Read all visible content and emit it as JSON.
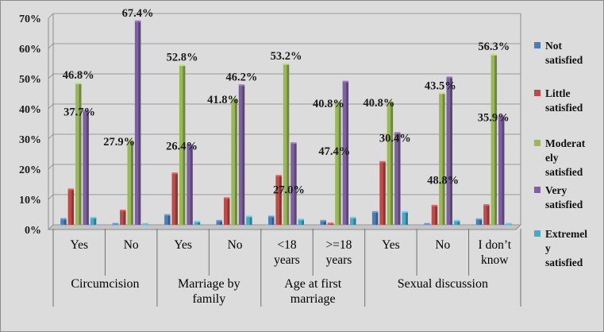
{
  "chart_data": {
    "type": "bar",
    "title": "",
    "xlabel": "",
    "ylabel": "",
    "ylim": [
      0,
      70
    ],
    "yticks": [
      0,
      10,
      20,
      30,
      40,
      50,
      60,
      70
    ],
    "ytick_labels": [
      "0%",
      "10%",
      "20%",
      "30%",
      "40%",
      "50%",
      "60%",
      "70%"
    ],
    "grid": true,
    "legend_position": "right",
    "groups": [
      {
        "name": "Circumcision",
        "categories": [
          "Yes",
          "No"
        ]
      },
      {
        "name": "Marriage by family",
        "categories": [
          "Yes",
          "No"
        ]
      },
      {
        "name": "Age at first marriage",
        "categories": [
          "<18 years",
          ">=18 years"
        ]
      },
      {
        "name": "Sexual discussion",
        "categories": [
          "Yes",
          "No",
          "I don’t know"
        ]
      }
    ],
    "categories": [
      "Yes",
      "No",
      "Yes",
      "No",
      "<18 years",
      ">=18 years",
      "Yes",
      "No",
      "I don’t know"
    ],
    "series": [
      {
        "name": "Not satisfied",
        "color": "#4a7ebb",
        "values": [
          1.9,
          0.3,
          3.2,
          1.3,
          2.7,
          1.3,
          4.2,
          0.2,
          1.8
        ]
      },
      {
        "name": "Little satisfied",
        "color": "#be4b48",
        "values": [
          11.7,
          4.7,
          17.0,
          8.8,
          16.2,
          0.4,
          20.8,
          6.3,
          6.5
        ]
      },
      {
        "name": "Moderately satisfied",
        "color": "#98b954",
        "values": [
          46.8,
          27.9,
          52.8,
          41.8,
          53.2,
          40.8,
          40.8,
          43.5,
          56.3
        ]
      },
      {
        "name": "Very satisfied",
        "color": "#7d60a0",
        "values": [
          37.7,
          67.4,
          26.4,
          46.2,
          27.0,
          47.4,
          30.4,
          48.8,
          35.9
        ]
      },
      {
        "name": "Extremely satisfied",
        "color": "#46aac5",
        "values": [
          2.3,
          0.1,
          1.0,
          2.7,
          1.7,
          2.3,
          4.2,
          1.3,
          0.3
        ]
      }
    ],
    "data_labels": [
      {
        "text": "46.8%",
        "category_index": 0,
        "series_index": 2
      },
      {
        "text": "37.7%",
        "category_index": 0,
        "series_index": 3
      },
      {
        "text": "67.4%",
        "category_index": 1,
        "series_index": 3
      },
      {
        "text": "27.9%",
        "category_index": 1,
        "series_index": 2
      },
      {
        "text": "52.8%",
        "category_index": 2,
        "series_index": 2
      },
      {
        "text": "26.4%",
        "category_index": 2,
        "series_index": 3
      },
      {
        "text": "46.2%",
        "category_index": 3,
        "series_index": 3
      },
      {
        "text": "41.8%",
        "category_index": 3,
        "series_index": 2
      },
      {
        "text": "53.2%",
        "category_index": 4,
        "series_index": 2
      },
      {
        "text": "27.0%",
        "category_index": 4,
        "series_index": 3
      },
      {
        "text": "40.8%",
        "category_index": 5,
        "series_index": 2
      },
      {
        "text": "47.4%",
        "category_index": 5,
        "series_index": 3
      },
      {
        "text": "40.8%",
        "category_index": 6,
        "series_index": 2
      },
      {
        "text": "30.4%",
        "category_index": 6,
        "series_index": 3
      },
      {
        "text": "43.5%",
        "category_index": 7,
        "series_index": 2
      },
      {
        "text": "48.8%",
        "category_index": 7,
        "series_index": 3
      },
      {
        "text": "56.3%",
        "category_index": 8,
        "series_index": 2
      },
      {
        "text": "35.9%",
        "category_index": 8,
        "series_index": 3
      }
    ]
  },
  "legend": {
    "items": [
      {
        "lines": [
          "Not",
          "satisfied"
        ],
        "color": "#4a7ebb"
      },
      {
        "lines": [
          "Little",
          "satisfied"
        ],
        "color": "#be4b48"
      },
      {
        "lines": [
          "Moderat",
          "ely",
          "satisfied"
        ],
        "color": "#98b954"
      },
      {
        "lines": [
          "Very",
          "satisfied"
        ],
        "color": "#7d60a0"
      },
      {
        "lines": [
          "Extremel",
          "y",
          "satisfied"
        ],
        "color": "#46aac5"
      }
    ]
  },
  "category_lines": [
    [
      "Yes"
    ],
    [
      "No"
    ],
    [
      "Yes"
    ],
    [
      "No"
    ],
    [
      "<18",
      "years"
    ],
    [
      ">=18",
      "years"
    ],
    [
      "Yes"
    ],
    [
      "No"
    ],
    [
      "I don’t",
      "know"
    ]
  ],
  "group_lines": [
    [
      "Circumcision"
    ],
    [
      "Marriage by",
      "family"
    ],
    [
      "Age at first",
      "marriage"
    ],
    [
      "Sexual discussion"
    ]
  ],
  "colors": {
    "background": "#dcdcdc",
    "plot_frame": "#8c8c8c",
    "grid": "#9a9a9a"
  }
}
